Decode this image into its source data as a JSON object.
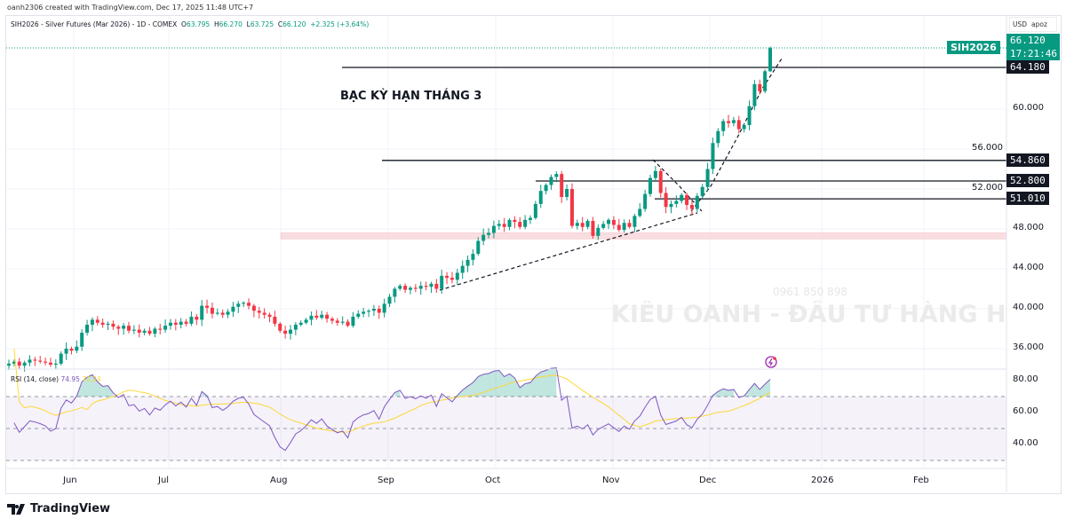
{
  "credit": "oanh2306 created with TradingView.com, Dec 17, 2025 11:48 UTC+7",
  "legend": {
    "symbol": "SIH2026 - Silver Futures (Mar 2026) - 1D - COMEX",
    "o_label": "O",
    "o": "63.795",
    "h_label": "H",
    "h": "66.270",
    "l_label": "L",
    "l": "63.725",
    "c_label": "C",
    "c": "66.120",
    "change": "+2.325 (+3.64%)"
  },
  "currency": "USD",
  "unit": "apoz",
  "symbol_tag": "SIH2026",
  "current_price": "66.120",
  "countdown": "17:21:46",
  "annotation": "BẠC KỲ HẠN THÁNG 3",
  "watermark": {
    "phone": "0961 850 898",
    "name": "KIỀU OANH - ĐẦU TƯ HÀNG HÓA HCM"
  },
  "brand": "TradingView",
  "colors": {
    "up": "#089981",
    "down": "#f23645",
    "rsi": "#7e57c2",
    "rsi_ma": "#fdd835",
    "zone": "#f8d7da"
  },
  "chart_data": [
    {
      "type": "candlestick",
      "title": "SIH2026 - Silver Futures (Mar 2026) - 1D - COMEX",
      "ylim": [
        33.5,
        67.5
      ],
      "y_ticks": [
        "36.000",
        "40.000",
        "44.000",
        "48.000",
        "52.000",
        "56.000",
        "60.000"
      ],
      "x_ticks": [
        "Jun",
        "Jul",
        "Aug",
        "Sep",
        "Oct",
        "Nov",
        "Dec",
        "2026",
        "Feb"
      ],
      "grid": true,
      "closes": [
        34.5,
        34.7,
        34.3,
        34.6,
        34.9,
        34.8,
        34.7,
        34.6,
        34.4,
        34.5,
        35.5,
        36.0,
        35.8,
        36.2,
        37.6,
        38.4,
        38.9,
        38.6,
        38.4,
        38.5,
        38.2,
        38.0,
        38.3,
        37.8,
        37.9,
        37.6,
        37.8,
        37.5,
        38.0,
        37.9,
        38.3,
        38.6,
        38.4,
        38.7,
        38.5,
        39.2,
        38.9,
        40.3,
        40.1,
        39.5,
        39.6,
        39.4,
        39.7,
        40.2,
        40.5,
        40.6,
        40.3,
        39.8,
        39.6,
        39.4,
        39.2,
        38.5,
        37.8,
        37.5,
        37.9,
        38.4,
        38.6,
        38.9,
        39.3,
        39.1,
        39.4,
        39.0,
        38.8,
        38.6,
        38.7,
        38.3,
        39.2,
        39.5,
        39.7,
        39.8,
        40.0,
        39.6,
        40.5,
        41.2,
        42.0,
        42.3,
        41.9,
        42.1,
        42.0,
        42.3,
        42.2,
        42.5,
        42.0,
        43.3,
        43.1,
        42.9,
        43.6,
        44.3,
        44.9,
        45.5,
        46.8,
        47.4,
        47.6,
        48.3,
        48.5,
        48.2,
        48.9,
        48.7,
        48.2,
        48.9,
        49.1,
        50.5,
        51.8,
        52.4,
        53.2,
        53.5,
        51.2,
        52.0,
        48.3,
        48.6,
        48.2,
        48.8,
        47.3,
        48.1,
        48.5,
        48.9,
        48.4,
        47.9,
        48.6,
        48.2,
        49.3,
        50.0,
        51.5,
        53.1,
        53.8,
        51.6,
        50.2,
        50.5,
        50.8,
        51.4,
        50.4,
        50.0,
        51.3,
        52.2,
        54.0,
        56.6,
        57.8,
        58.8,
        58.6,
        58.9,
        58.0,
        58.4,
        60.3,
        62.5,
        61.8,
        63.8,
        66.12
      ],
      "last_bar": {
        "open": 63.795,
        "high": 66.27,
        "low": 63.725,
        "close": 66.12
      },
      "levels": [
        {
          "price": 64.18,
          "label": "64.180"
        },
        {
          "price": 54.86,
          "label": "54.860"
        },
        {
          "price": 52.8,
          "label": "52.800"
        },
        {
          "price": 51.01,
          "label": "51.010"
        }
      ],
      "zone": [
        47.0,
        47.6
      ]
    },
    {
      "type": "line",
      "title": "RSI (14, close)",
      "series": [
        {
          "name": "RSI",
          "last": "74.95"
        },
        {
          "name": "RSI MA",
          "last": "72.24"
        }
      ],
      "ylim": [
        25,
        88
      ],
      "y_ticks": [
        "80.00",
        "60.00",
        "40.00"
      ],
      "bands": [
        70,
        50,
        30
      ]
    }
  ]
}
